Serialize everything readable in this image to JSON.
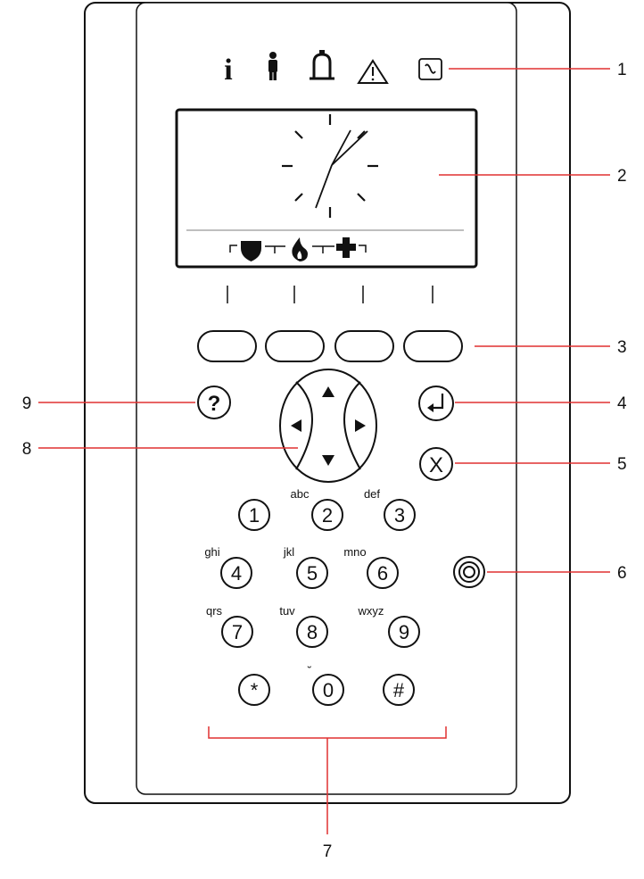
{
  "status_icons": [
    {
      "name": "info-icon",
      "glyph": "i"
    },
    {
      "name": "person-icon"
    },
    {
      "name": "bell-icon"
    },
    {
      "name": "warning-icon"
    },
    {
      "name": "power-icon"
    }
  ],
  "keypad": {
    "help_key": {
      "label": "?"
    },
    "enter_key": {
      "icon": "enter-icon"
    },
    "cancel_key": {
      "label": "X"
    },
    "rows": [
      [
        {
          "digit": "1",
          "letters": ""
        },
        {
          "digit": "2",
          "letters": "abc"
        },
        {
          "digit": "3",
          "letters": "def"
        }
      ],
      [
        {
          "digit": "4",
          "letters": "ghi"
        },
        {
          "digit": "5",
          "letters": "jkl"
        },
        {
          "digit": "6",
          "letters": "mno"
        }
      ],
      [
        {
          "digit": "7",
          "letters": "qrs"
        },
        {
          "digit": "8",
          "letters": "tuv"
        },
        {
          "digit": "9",
          "letters": "wxyz"
        }
      ],
      [
        {
          "digit": "*",
          "letters": ""
        },
        {
          "digit": "0",
          "letters": "˘"
        },
        {
          "digit": "#",
          "letters": ""
        }
      ]
    ]
  },
  "callouts": [
    "1",
    "2",
    "3",
    "4",
    "5",
    "6",
    "7",
    "8",
    "9"
  ],
  "colors": {
    "callout_line": "#e03030",
    "outline": "#111111",
    "panel_fill": "#ffffff"
  }
}
